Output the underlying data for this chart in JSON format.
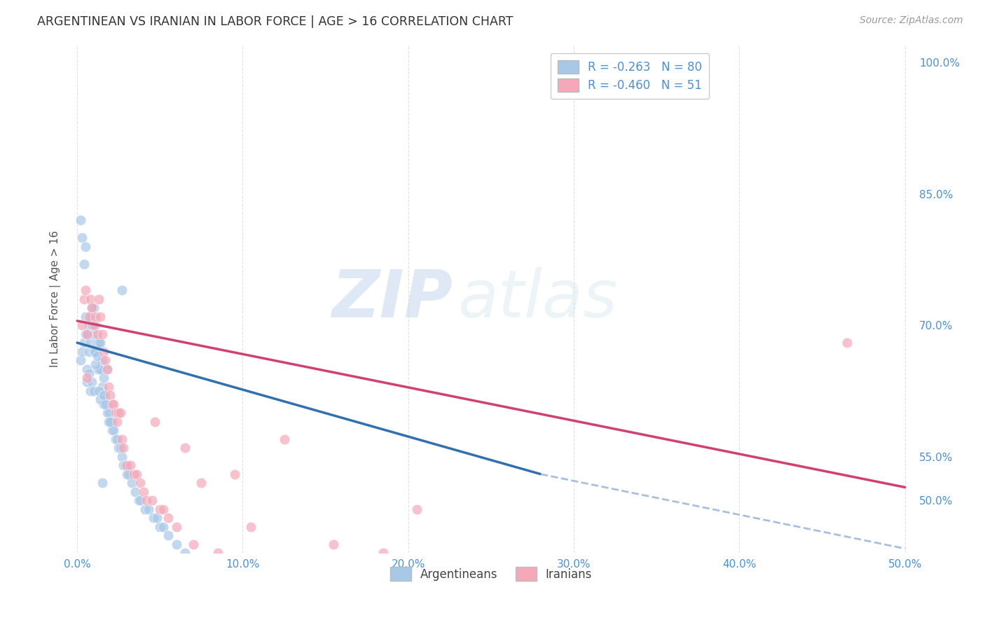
{
  "title": "ARGENTINEAN VS IRANIAN IN LABOR FORCE | AGE > 16 CORRELATION CHART",
  "source": "Source: ZipAtlas.com",
  "ylabel": "In Labor Force | Age > 16",
  "legend_label_1": "Argentineans",
  "legend_label_2": "Iranians",
  "R1": -0.263,
  "N1": 80,
  "R2": -0.46,
  "N2": 51,
  "color_blue": "#a8c8e8",
  "color_pink": "#f4a8b8",
  "color_blue_line": "#3070b0",
  "color_pink_line": "#d04070",
  "color_dashed": "#a8c0e0",
  "color_axis_label": "#4a90d9",
  "xlim": [
    -0.5,
    50.5
  ],
  "ylim": [
    44.0,
    102.0
  ],
  "xticks": [
    0,
    10,
    20,
    30,
    40,
    50
  ],
  "yticks_right": [
    50,
    55,
    70,
    85,
    100
  ],
  "background_color": "#ffffff",
  "grid_color": "#cccccc",
  "watermark_zip": "ZIP",
  "watermark_atlas": "atlas",
  "argentineans_x": [
    0.2,
    0.3,
    0.4,
    0.5,
    0.5,
    0.6,
    0.6,
    0.7,
    0.7,
    0.8,
    0.8,
    0.9,
    0.9,
    1.0,
    1.0,
    1.0,
    1.1,
    1.1,
    1.2,
    1.2,
    1.3,
    1.3,
    1.4,
    1.4,
    1.5,
    1.5,
    1.6,
    1.6,
    1.7,
    1.8,
    1.8,
    1.9,
    2.0,
    2.1,
    2.1,
    2.2,
    2.3,
    2.4,
    2.5,
    2.6,
    2.7,
    2.8,
    2.9,
    3.0,
    3.1,
    3.3,
    3.5,
    3.7,
    3.8,
    4.1,
    4.3,
    4.6,
    4.8,
    5.0,
    5.2,
    5.5,
    6.0,
    6.5,
    7.0,
    7.5,
    0.2,
    0.3,
    0.4,
    0.5,
    0.6,
    0.7,
    0.8,
    0.9,
    1.0,
    1.1,
    1.2,
    1.3,
    1.4,
    1.5,
    1.6,
    1.7,
    1.8,
    1.9,
    2.0,
    2.7
  ],
  "argentineans_y": [
    66.0,
    67.0,
    68.0,
    69.0,
    71.0,
    65.0,
    69.0,
    67.0,
    70.0,
    71.0,
    68.0,
    70.0,
    72.0,
    67.0,
    69.0,
    72.0,
    67.0,
    70.0,
    65.0,
    68.0,
    65.0,
    68.0,
    65.0,
    68.0,
    63.0,
    66.0,
    61.0,
    64.0,
    62.0,
    61.0,
    60.0,
    60.0,
    59.0,
    59.0,
    58.0,
    58.0,
    57.0,
    57.0,
    56.0,
    56.0,
    55.0,
    54.0,
    54.0,
    53.0,
    53.0,
    52.0,
    51.0,
    50.0,
    50.0,
    49.0,
    49.0,
    48.0,
    48.0,
    47.0,
    47.0,
    46.0,
    45.0,
    44.0,
    43.0,
    42.0,
    82.0,
    80.0,
    77.0,
    79.0,
    63.5,
    64.5,
    62.5,
    63.5,
    62.5,
    65.5,
    66.5,
    62.5,
    61.5,
    52.0,
    62.0,
    61.0,
    65.0,
    59.0,
    59.0,
    74.0
  ],
  "iranians_x": [
    0.3,
    0.4,
    0.5,
    0.6,
    0.7,
    0.8,
    0.9,
    1.0,
    1.1,
    1.2,
    1.3,
    1.4,
    1.5,
    1.6,
    1.7,
    1.8,
    1.9,
    2.0,
    2.1,
    2.2,
    2.3,
    2.4,
    2.5,
    2.6,
    2.7,
    2.8,
    3.0,
    3.2,
    3.4,
    3.6,
    3.8,
    4.0,
    4.2,
    4.5,
    4.7,
    5.0,
    5.2,
    5.5,
    6.0,
    6.5,
    7.0,
    7.5,
    8.5,
    9.5,
    10.5,
    12.5,
    15.5,
    18.5,
    20.5,
    46.5,
    0.6
  ],
  "iranians_y": [
    70.0,
    73.0,
    74.0,
    69.0,
    71.0,
    73.0,
    72.0,
    70.0,
    71.0,
    69.0,
    73.0,
    71.0,
    69.0,
    67.0,
    66.0,
    65.0,
    63.0,
    62.0,
    61.0,
    61.0,
    60.0,
    59.0,
    60.0,
    60.0,
    57.0,
    56.0,
    54.0,
    54.0,
    53.0,
    53.0,
    52.0,
    51.0,
    50.0,
    50.0,
    59.0,
    49.0,
    49.0,
    48.0,
    47.0,
    56.0,
    45.0,
    52.0,
    44.0,
    53.0,
    47.0,
    57.0,
    45.0,
    44.0,
    49.0,
    68.0,
    64.0
  ],
  "blue_line_x": [
    0.0,
    28.0
  ],
  "blue_line_y": [
    68.0,
    53.0
  ],
  "pink_line_x": [
    0.0,
    50.0
  ],
  "pink_line_y": [
    70.5,
    51.5
  ],
  "dashed_line_x": [
    28.0,
    50.0
  ],
  "dashed_line_y": [
    53.0,
    44.5
  ]
}
